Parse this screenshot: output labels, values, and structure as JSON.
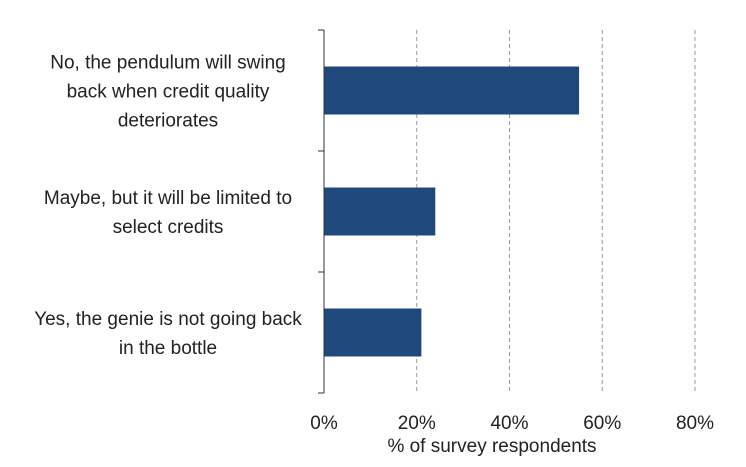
{
  "chart_data": {
    "type": "bar",
    "orientation": "horizontal",
    "categories": [
      [
        "No, the pendulum will swing",
        "back when credit quality",
        "deteriorates"
      ],
      [
        "Maybe, but it will be limited to",
        "select credits"
      ],
      [
        "Yes, the genie is not going back",
        "in the bottle"
      ]
    ],
    "values": [
      55,
      24,
      21
    ],
    "xlabel": "% of survey respondents",
    "xlim": [
      0,
      80
    ],
    "xticks": [
      0,
      20,
      40,
      60,
      80
    ],
    "xtick_labels": [
      "0%",
      "20%",
      "40%",
      "60%",
      "80%"
    ],
    "grid": "vertical dashed",
    "bar_color": "#1f497d",
    "grid_color": "#999999"
  }
}
